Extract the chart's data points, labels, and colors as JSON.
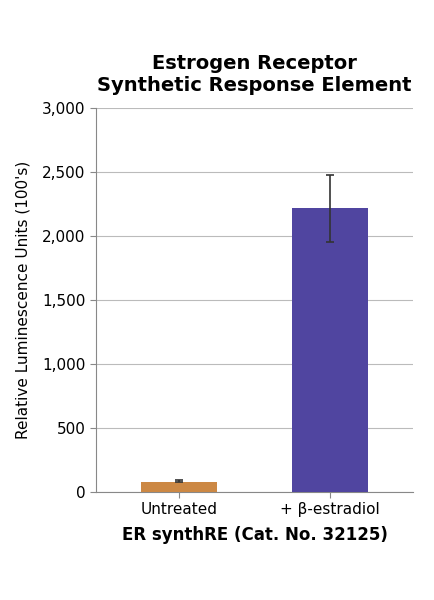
{
  "title_line1": "Estrogen Receptor",
  "title_line2": "Synthetic Response Element",
  "categories": [
    "Untreated",
    "+ β-estradiol"
  ],
  "values": [
    75,
    2215
  ],
  "errors": [
    15,
    265
  ],
  "bar_colors": [
    "#CC8844",
    "#5045A0"
  ],
  "xlabel": "ER synthRE (Cat. No. 32125)",
  "ylabel": "Relative Luminescence Units (100's)",
  "ylim": [
    0,
    3000
  ],
  "yticks": [
    0,
    500,
    1000,
    1500,
    2000,
    2500,
    3000
  ],
  "ytick_labels": [
    "0",
    "500",
    "1,000",
    "1,500",
    "2,000",
    "2,500",
    "3,000"
  ],
  "background_color": "#FFFFFF",
  "title_fontsize": 14,
  "xlabel_fontsize": 12,
  "ylabel_fontsize": 11,
  "tick_fontsize": 11,
  "xtick_fontsize": 11,
  "bar_width": 0.5,
  "error_capsize": 4,
  "error_color": "#333333",
  "grid_color": "#BBBBBB",
  "spine_color": "#888888"
}
